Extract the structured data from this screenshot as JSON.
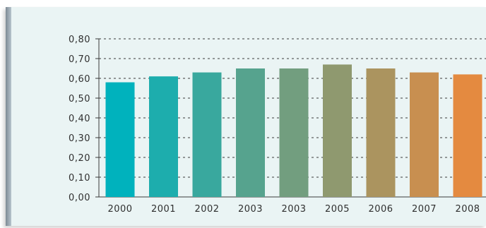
{
  "chart_data": {
    "type": "bar",
    "title": "",
    "xlabel": "",
    "ylabel": "",
    "categories": [
      "2000",
      "2001",
      "2002",
      "2003",
      "2003",
      "2005",
      "2006",
      "2007",
      "2008"
    ],
    "values": [
      0.58,
      0.61,
      0.63,
      0.65,
      0.65,
      0.67,
      0.65,
      0.63,
      0.62
    ],
    "ylim": [
      0,
      0.8
    ],
    "yticks": [
      "0,00",
      "0,10",
      "0,20",
      "0,30",
      "0,40",
      "0,50",
      "0,60",
      "0,70",
      "0,80"
    ],
    "grid": true,
    "legend": "none",
    "bar_color_start": "#00b2bd",
    "bar_color_end": "#e48a40",
    "panel_color": "#eaf4f4"
  }
}
